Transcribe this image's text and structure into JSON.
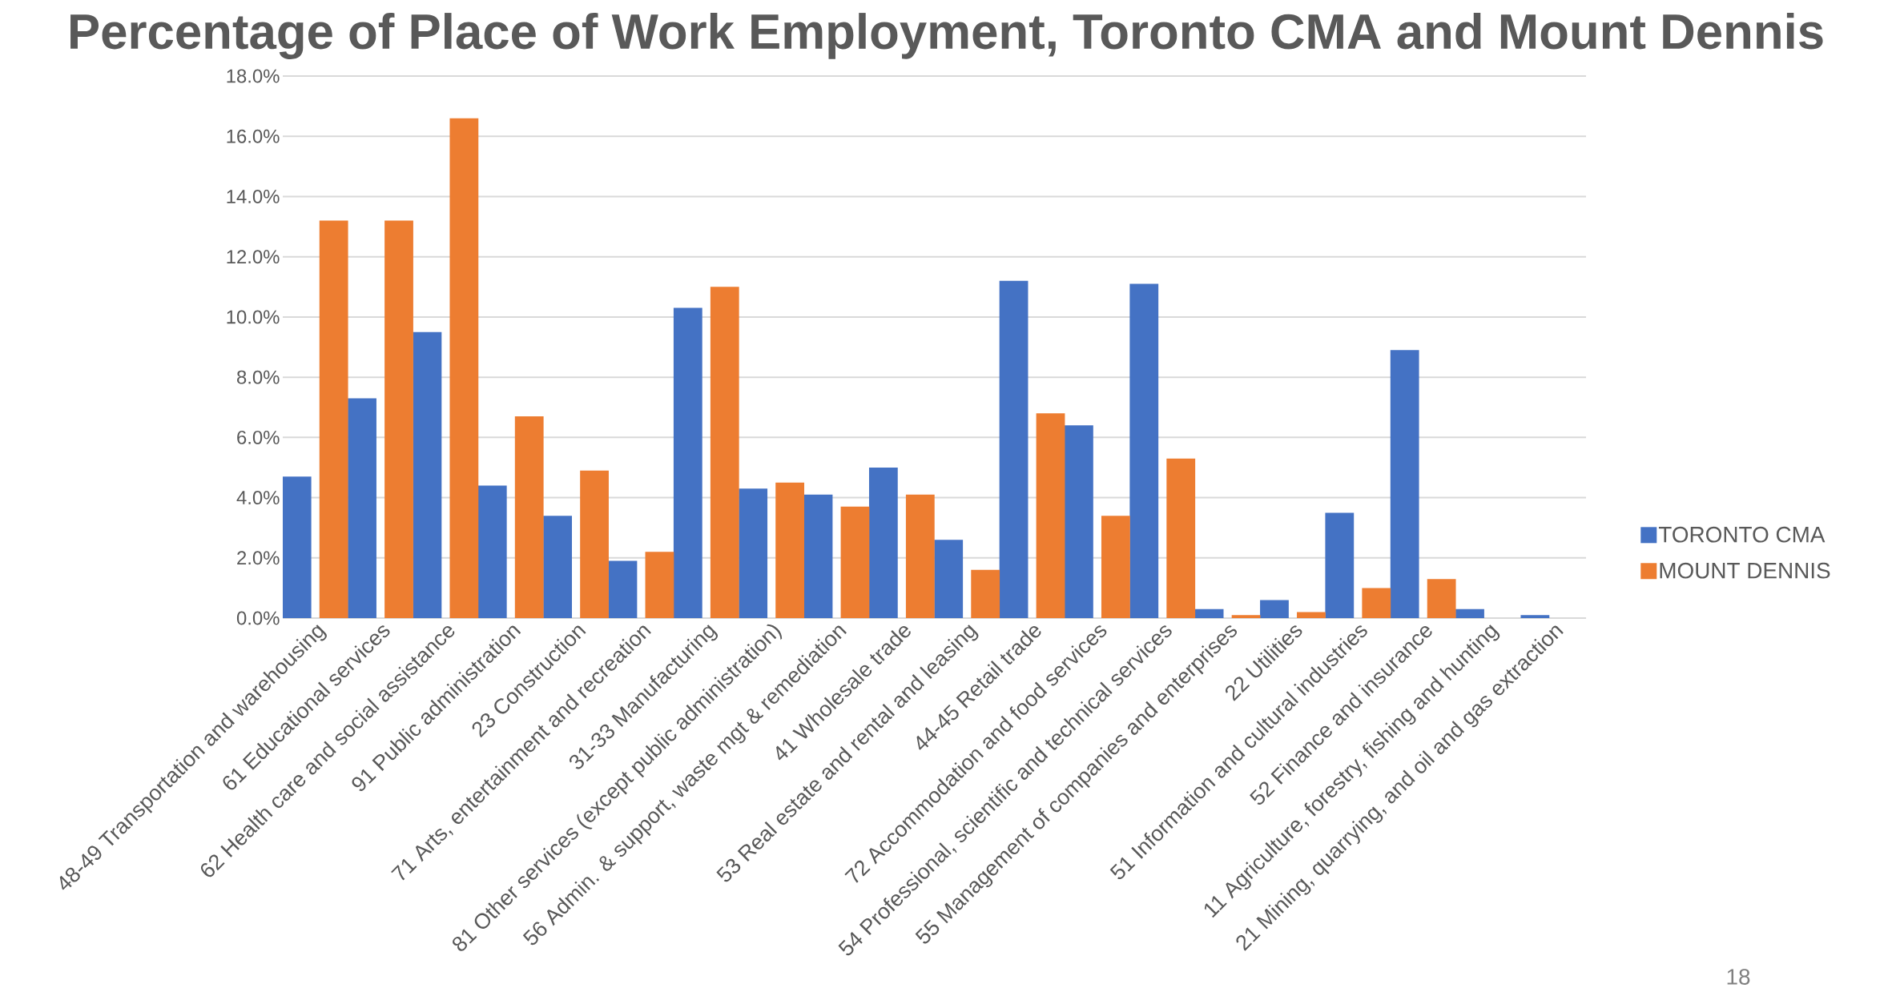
{
  "chart_data": {
    "type": "bar",
    "title": "Percentage of Place of Work Employment, Toronto CMA and Mount Dennis",
    "categories": [
      "48-49 Transportation and warehousing",
      "61 Educational services",
      "62 Health care and social assistance",
      "91 Public administration",
      "23 Construction",
      "71 Arts, entertainment and recreation",
      "31-33 Manufacturing",
      "81 Other services (except public administration)",
      "56 Admin. & support, waste mgt & remediation",
      "41 Wholesale trade",
      "53 Real estate and rental and leasing",
      "44-45 Retail trade",
      "72 Accommodation and food services",
      "54 Professional, scientific and technical services",
      "55 Management of companies and enterprises",
      "22 Utilities",
      "51 Information and cultural industries",
      "52 Finance and insurance",
      "11 Agriculture, forestry, fishing and hunting",
      "21 Mining, quarrying, and oil and gas extraction"
    ],
    "series": [
      {
        "name": "TORONTO CMA",
        "color": "#4472c4",
        "values": [
          4.7,
          7.3,
          9.5,
          4.4,
          3.4,
          1.9,
          10.3,
          4.3,
          4.1,
          5.0,
          2.6,
          11.2,
          6.4,
          11.1,
          0.3,
          0.6,
          3.5,
          8.9,
          0.3,
          0.1
        ]
      },
      {
        "name": "MOUNT DENNIS",
        "color": "#ed7d31",
        "values": [
          13.2,
          13.2,
          16.6,
          6.7,
          4.9,
          2.2,
          11.0,
          4.5,
          3.7,
          4.1,
          1.6,
          6.8,
          3.4,
          5.3,
          0.1,
          0.2,
          1.0,
          1.3,
          0.0,
          0.0
        ]
      }
    ],
    "ylim": [
      0,
      18
    ],
    "yticks": [
      {
        "value": 0,
        "label": "0.0%"
      },
      {
        "value": 2,
        "label": "2.0%"
      },
      {
        "value": 4,
        "label": "4.0%"
      },
      {
        "value": 6,
        "label": "6.0%"
      },
      {
        "value": 8,
        "label": "8.0%"
      },
      {
        "value": 10,
        "label": "10.0%"
      },
      {
        "value": 12,
        "label": "12.0%"
      },
      {
        "value": 14,
        "label": "14.0%"
      },
      {
        "value": 16,
        "label": "16.0%"
      },
      {
        "value": 18,
        "label": "18.0%"
      }
    ],
    "grid": "y",
    "legend": "right",
    "annotations": [
      "18"
    ]
  }
}
